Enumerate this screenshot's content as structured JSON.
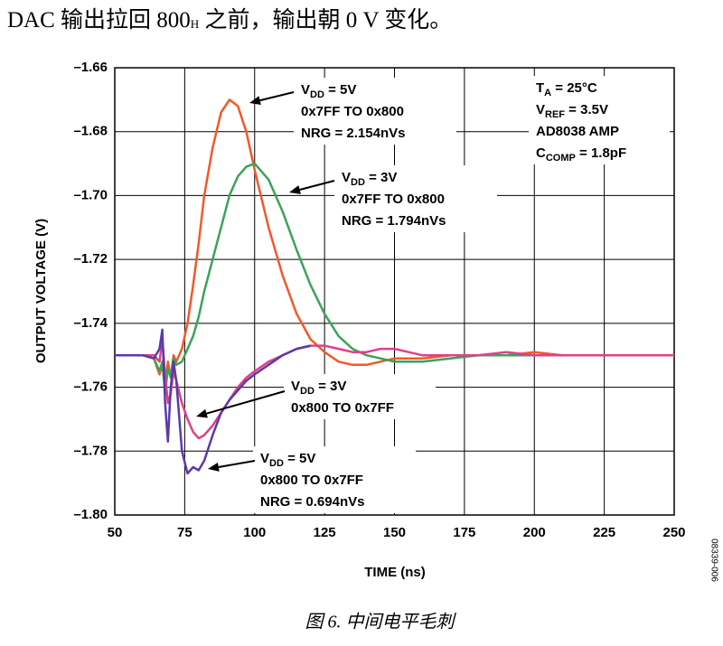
{
  "intro": {
    "base": "DAC 输出拉回 800",
    "sub": "H",
    "after": " 之前，输出朝 0 V 变化。"
  },
  "chart_data": {
    "type": "line",
    "xlabel": "TIME (ns)",
    "ylabel": "OUTPUT VOLTAGE (V)",
    "xlim": [
      50,
      250
    ],
    "xticks": [
      50,
      75,
      100,
      125,
      150,
      175,
      200,
      225,
      250
    ],
    "ylim": [
      -1.8,
      -1.66
    ],
    "yticks": [
      {
        "value": -1.66,
        "label": "–1.66"
      },
      {
        "value": -1.68,
        "label": "–1.68"
      },
      {
        "value": -1.7,
        "label": "–1.70"
      },
      {
        "value": -1.72,
        "label": "–1.72"
      },
      {
        "value": -1.74,
        "label": "–1.74"
      },
      {
        "value": -1.76,
        "label": "–1.76"
      },
      {
        "value": -1.78,
        "label": "–1.78"
      },
      {
        "value": -1.8,
        "label": "–1.80"
      }
    ],
    "grid": true,
    "x": [
      50,
      60,
      64,
      66,
      67,
      68,
      69,
      70,
      71,
      72,
      74,
      76,
      78,
      80,
      82,
      85,
      88,
      91,
      94,
      97,
      100,
      105,
      110,
      115,
      120,
      125,
      130,
      135,
      140,
      145,
      150,
      155,
      160,
      170,
      180,
      190,
      200,
      210,
      220,
      230,
      240,
      250
    ],
    "series": [
      {
        "color": "#f05a28",
        "values": [
          -1.75,
          -1.75,
          -1.751,
          -1.756,
          -1.753,
          -1.76,
          -1.752,
          -1.757,
          -1.75,
          -1.752,
          -1.748,
          -1.74,
          -1.728,
          -1.715,
          -1.7,
          -1.685,
          -1.674,
          -1.67,
          -1.672,
          -1.68,
          -1.692,
          -1.71,
          -1.725,
          -1.737,
          -1.745,
          -1.749,
          -1.752,
          -1.753,
          -1.753,
          -1.752,
          -1.751,
          -1.751,
          -1.751,
          -1.75,
          -1.75,
          -1.75,
          -1.749,
          -1.75,
          -1.75,
          -1.75,
          -1.75,
          -1.75
        ]
      },
      {
        "color": "#3aa35a",
        "values": [
          -1.75,
          -1.75,
          -1.751,
          -1.755,
          -1.752,
          -1.762,
          -1.754,
          -1.757,
          -1.751,
          -1.753,
          -1.752,
          -1.748,
          -1.744,
          -1.738,
          -1.73,
          -1.72,
          -1.71,
          -1.7,
          -1.694,
          -1.691,
          -1.69,
          -1.695,
          -1.705,
          -1.717,
          -1.728,
          -1.737,
          -1.744,
          -1.748,
          -1.75,
          -1.751,
          -1.752,
          -1.752,
          -1.752,
          -1.751,
          -1.75,
          -1.75,
          -1.75,
          -1.75,
          -1.75,
          -1.75,
          -1.75,
          -1.75
        ]
      },
      {
        "color": "#e0408a",
        "values": [
          -1.75,
          -1.75,
          -1.75,
          -1.752,
          -1.745,
          -1.756,
          -1.765,
          -1.762,
          -1.755,
          -1.758,
          -1.765,
          -1.77,
          -1.774,
          -1.776,
          -1.775,
          -1.772,
          -1.768,
          -1.764,
          -1.76,
          -1.757,
          -1.755,
          -1.752,
          -1.75,
          -1.748,
          -1.747,
          -1.747,
          -1.748,
          -1.749,
          -1.749,
          -1.748,
          -1.748,
          -1.749,
          -1.75,
          -1.75,
          -1.75,
          -1.749,
          -1.75,
          -1.75,
          -1.75,
          -1.75,
          -1.75,
          -1.75
        ]
      },
      {
        "color": "#5b3aa8",
        "values": [
          -1.75,
          -1.75,
          -1.751,
          -1.748,
          -1.742,
          -1.765,
          -1.777,
          -1.76,
          -1.752,
          -1.758,
          -1.78,
          -1.787,
          -1.785,
          -1.786,
          -1.783,
          -1.775,
          -1.768,
          -1.764,
          -1.761,
          -1.758,
          -1.756,
          -1.753,
          -1.75,
          -1.748,
          -1.747,
          null,
          null,
          null,
          null,
          null,
          null,
          null,
          null,
          null,
          null,
          null,
          null,
          null,
          null,
          null,
          null,
          null
        ]
      }
    ],
    "annotations": [
      {
        "lines": [
          {
            "base": "V",
            "sub": "DD",
            "after": " = 5V"
          },
          "0x7FF TO 0x800",
          "NRG = 2.154nVs"
        ]
      },
      {
        "lines": [
          {
            "base": "V",
            "sub": "DD",
            "after": " = 3V"
          },
          "0x7FF TO 0x800",
          "NRG = 1.794nVs"
        ]
      },
      {
        "lines": [
          {
            "base": "V",
            "sub": "DD",
            "after": " = 3V"
          },
          "0x800 TO 0x7FF"
        ]
      },
      {
        "lines": [
          {
            "base": "V",
            "sub": "DD",
            "after": " = 5V"
          },
          "0x800 TO 0x7FF",
          "NRG = 0.694nVs"
        ]
      },
      {
        "lines": [
          {
            "base": "T",
            "sub": "A",
            "after": " = 25°C"
          },
          {
            "base": "V",
            "sub": "REF",
            "after": " = 3.5V"
          },
          "AD8038 AMP",
          {
            "base": "C",
            "sub": "COMP",
            "after": " = 1.8pF"
          }
        ]
      }
    ],
    "figure_id": "08339-006"
  },
  "caption": "图 6. 中间电平毛刺"
}
